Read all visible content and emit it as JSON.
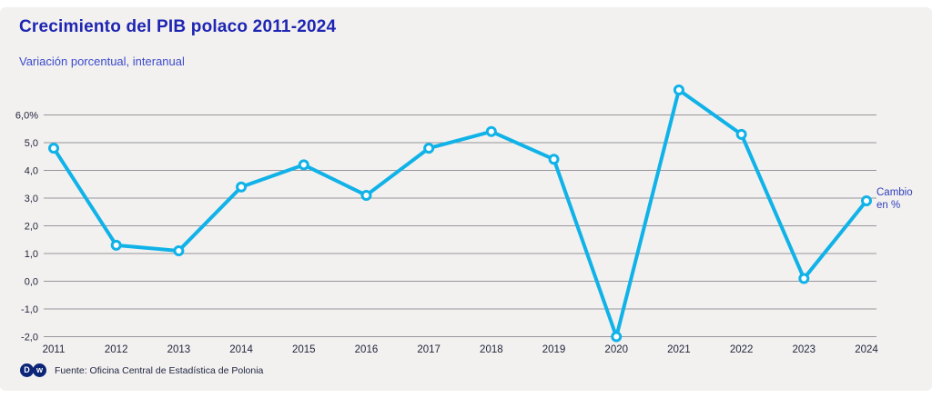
{
  "header": {
    "title": "Crecimiento del PIB polaco 2011-2024",
    "subtitle": "Variación porcentual, interanual"
  },
  "annotation": {
    "line1": "Cambio",
    "line2": "en %"
  },
  "footer": {
    "source": "Fuente: Oficina Central de Estadística de Polonia",
    "logo_left_letter": "D",
    "logo_right_letter": "w"
  },
  "colors": {
    "line": "#10b2e8",
    "marker_fill": "#ffffff",
    "grid": "#97959c",
    "axis_text": "#23263e",
    "title": "#1e25b2",
    "subtitle": "#3d4bcd",
    "annotation": "#3340bd",
    "background": "#f2f1ef",
    "logo": "#0c2577"
  },
  "chart_data": {
    "type": "line",
    "title": "Crecimiento del PIB polaco 2011-2024",
    "subtitle": "Variación porcentual, interanual",
    "x": [
      2011,
      2012,
      2013,
      2014,
      2015,
      2016,
      2017,
      2018,
      2019,
      2020,
      2021,
      2022,
      2023,
      2024
    ],
    "series": [
      {
        "name": "Cambio en %",
        "values": [
          4.8,
          1.3,
          1.1,
          3.4,
          4.2,
          3.1,
          4.8,
          5.4,
          4.4,
          -2.0,
          6.9,
          5.3,
          0.1,
          2.9
        ]
      }
    ],
    "y_ticks": [
      "6,0%",
      "5,0",
      "4,0",
      "3,0",
      "2,0",
      "1,0",
      "0,0",
      "-1,0",
      "-2,0"
    ],
    "y_tick_values": [
      6,
      5,
      4,
      3,
      2,
      1,
      0,
      -1,
      -2
    ],
    "ylim": [
      -2,
      7.2
    ],
    "xlabel": "",
    "ylabel": "Variación porcentual interanual",
    "grid": true,
    "legend_position": "right-of-last-point"
  }
}
